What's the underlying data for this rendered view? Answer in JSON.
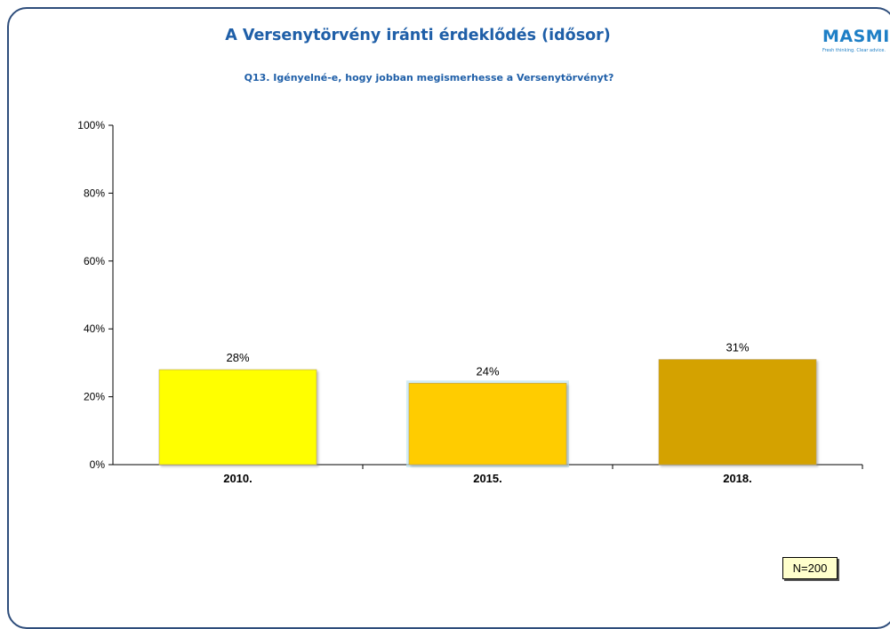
{
  "title": "A Versenytörvény iránti érdeklődés (idősor)",
  "subtitle": "Q13. Igényelné-e, hogy jobban megismerhesse a Versenytörvényt?",
  "logo": {
    "text": "MASMI",
    "tagline": "Fresh thinking. Clear advice."
  },
  "note": "N=200",
  "colors": {
    "title": "#1f5fa8",
    "bar_2010": "#ffff00",
    "bar_2015": "#ffcc00",
    "bar_2018": "#d4a200"
  },
  "chart_data": {
    "type": "bar",
    "categories": [
      "2010.",
      "2015.",
      "2018."
    ],
    "values": [
      28,
      24,
      31
    ],
    "value_labels": [
      "28%",
      "24%",
      "31%"
    ],
    "ylim": [
      0,
      100
    ],
    "yticks": [
      "0%",
      "20%",
      "40%",
      "60%",
      "80%",
      "100%"
    ],
    "ytick_values": [
      0,
      20,
      40,
      60,
      80,
      100
    ],
    "bar_colors": [
      "#ffff00",
      "#ffcc00",
      "#d4a200"
    ],
    "grid": false,
    "legend": "none"
  }
}
